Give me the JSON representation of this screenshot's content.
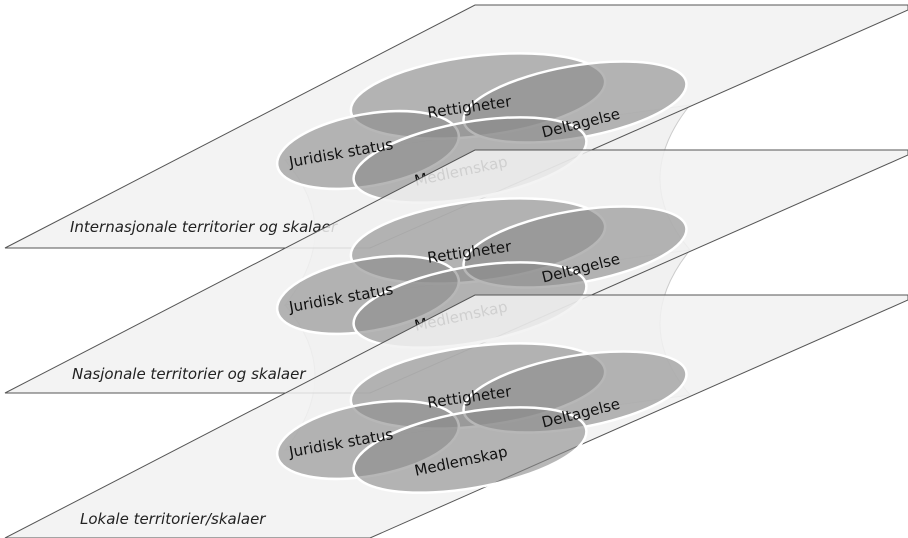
{
  "layers": [
    {
      "label": "Internasjonale territorier og skalaer",
      "circles": {
        "rights": "Rettigheter",
        "participation": "Deltagelse",
        "legal": "Juridisk status",
        "membership": "Medlemskap"
      }
    },
    {
      "label": "Nasjonale territorier og skalaer",
      "circles": {
        "rights": "Rettigheter",
        "participation": "Deltagelse",
        "legal": "Juridisk status",
        "membership": "Medlemskap"
      }
    },
    {
      "label": "Lokale territorier/skalaer",
      "circles": {
        "rights": "Rettigheter",
        "participation": "Deltagelse",
        "legal": "Juridisk status",
        "membership": "Medlemskap"
      }
    }
  ]
}
